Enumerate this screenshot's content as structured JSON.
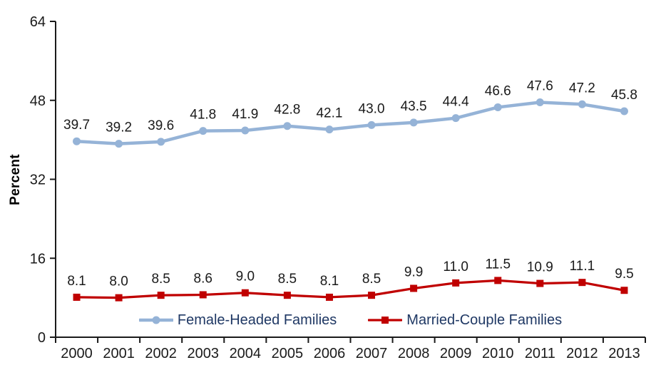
{
  "chart_data": {
    "type": "line",
    "title": "",
    "xlabel": "",
    "ylabel": "Percent",
    "ylim": [
      0,
      64
    ],
    "yticks": [
      0,
      16,
      32,
      48,
      64
    ],
    "grid": false,
    "legend_position": "bottom",
    "axis_color": "#1a1a1a",
    "text_color": "#1a1a1a",
    "legend_text_color": "#1f3864",
    "x": [
      2000,
      2001,
      2002,
      2003,
      2004,
      2005,
      2006,
      2007,
      2008,
      2009,
      2010,
      2011,
      2012,
      2013
    ],
    "series": [
      {
        "name": "Female-Headed Families",
        "color": "#95B3D7",
        "marker": "circle",
        "line_width": 4.5,
        "values": [
          39.7,
          39.2,
          39.6,
          41.8,
          41.9,
          42.8,
          42.1,
          43.0,
          43.5,
          44.4,
          46.6,
          47.6,
          47.2,
          45.8
        ]
      },
      {
        "name": "Married-Couple Families",
        "color": "#C00000",
        "marker": "square",
        "line_width": 3.25,
        "values": [
          8.1,
          8.0,
          8.5,
          8.6,
          9.0,
          8.5,
          8.1,
          8.5,
          9.9,
          11.0,
          11.5,
          10.9,
          11.1,
          9.5
        ]
      }
    ]
  }
}
